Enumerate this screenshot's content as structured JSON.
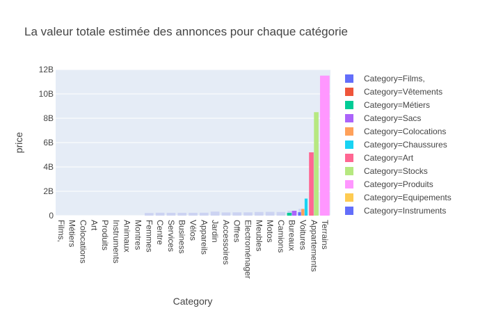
{
  "chart_data": {
    "type": "bar",
    "title": "La valeur totale estimée des annonces pour chaque catégorie",
    "xlabel": "Category",
    "ylabel": "price",
    "ylim": [
      0,
      12000000000
    ],
    "yticks": [
      {
        "value": 0,
        "label": "0"
      },
      {
        "value": 2000000000,
        "label": "2B"
      },
      {
        "value": 4000000000,
        "label": "4B"
      },
      {
        "value": 6000000000,
        "label": "6B"
      },
      {
        "value": 8000000000,
        "label": "8B"
      },
      {
        "value": 10000000000,
        "label": "10B"
      },
      {
        "value": 12000000000,
        "label": "12B"
      }
    ],
    "grid": true,
    "legend_position": "right",
    "categories": [
      "Films,",
      "Métiers",
      "Colocations",
      "Art",
      "Produits",
      "Instruments",
      "Animaux",
      "Montres",
      "Femmes",
      "Centre",
      "Services",
      "Business",
      "Vélos",
      "Appareils",
      "Jardin",
      "Accessoires",
      "Offres",
      "Electroménager",
      "Meubles",
      "Motos",
      "Camions",
      "Bureaux",
      "Voitures",
      "Appartements",
      "Terrains"
    ],
    "values": [
      0,
      0,
      0,
      0,
      0,
      0,
      0,
      0,
      220000000,
      240000000,
      230000000,
      230000000,
      230000000,
      240000000,
      330000000,
      260000000,
      270000000,
      270000000,
      300000000,
      310000000,
      300000000,
      400000000,
      550000000,
      5200000000,
      11500000000
    ],
    "bars": [
      {
        "category": "Bureaux",
        "value": 230000000,
        "color": "#00cc96"
      },
      {
        "category": "Bureaux",
        "value": 400000000,
        "color": "#ab63fa"
      },
      {
        "category": "Voitures",
        "value": 280000000,
        "color": "#636efa"
      },
      {
        "category": "Voitures",
        "value": 550000000,
        "color": "#ffa15a"
      },
      {
        "category": "Voitures",
        "value": 1400000000,
        "color": "#19d3f3"
      },
      {
        "category": "Appartements",
        "value": 5200000000,
        "color": "#ff6692"
      },
      {
        "category": "Appartements",
        "value": 8500000000,
        "color": "#b6e880"
      },
      {
        "category": "Terrains",
        "value": 11500000000,
        "color": "#ff97ff"
      }
    ],
    "legend": [
      {
        "label": "Category=Films,",
        "color": "#636efa"
      },
      {
        "label": "Category=Vêtements",
        "color": "#ef553b"
      },
      {
        "label": "Category=Métiers",
        "color": "#00cc96"
      },
      {
        "label": "Category=Sacs",
        "color": "#ab63fa"
      },
      {
        "label": "Category=Colocations",
        "color": "#ffa15a"
      },
      {
        "label": "Category=Chaussures",
        "color": "#19d3f3"
      },
      {
        "label": "Category=Art",
        "color": "#ff6692"
      },
      {
        "label": "Category=Stocks",
        "color": "#b6e880"
      },
      {
        "label": "Category=Produits",
        "color": "#ff97ff"
      },
      {
        "label": "Category=Equipements",
        "color": "#fecb52"
      },
      {
        "label": "Category=Instruments",
        "color": "#636efa"
      }
    ],
    "plot_background": "#e5ecf6",
    "grid_color": "#ffffff"
  }
}
